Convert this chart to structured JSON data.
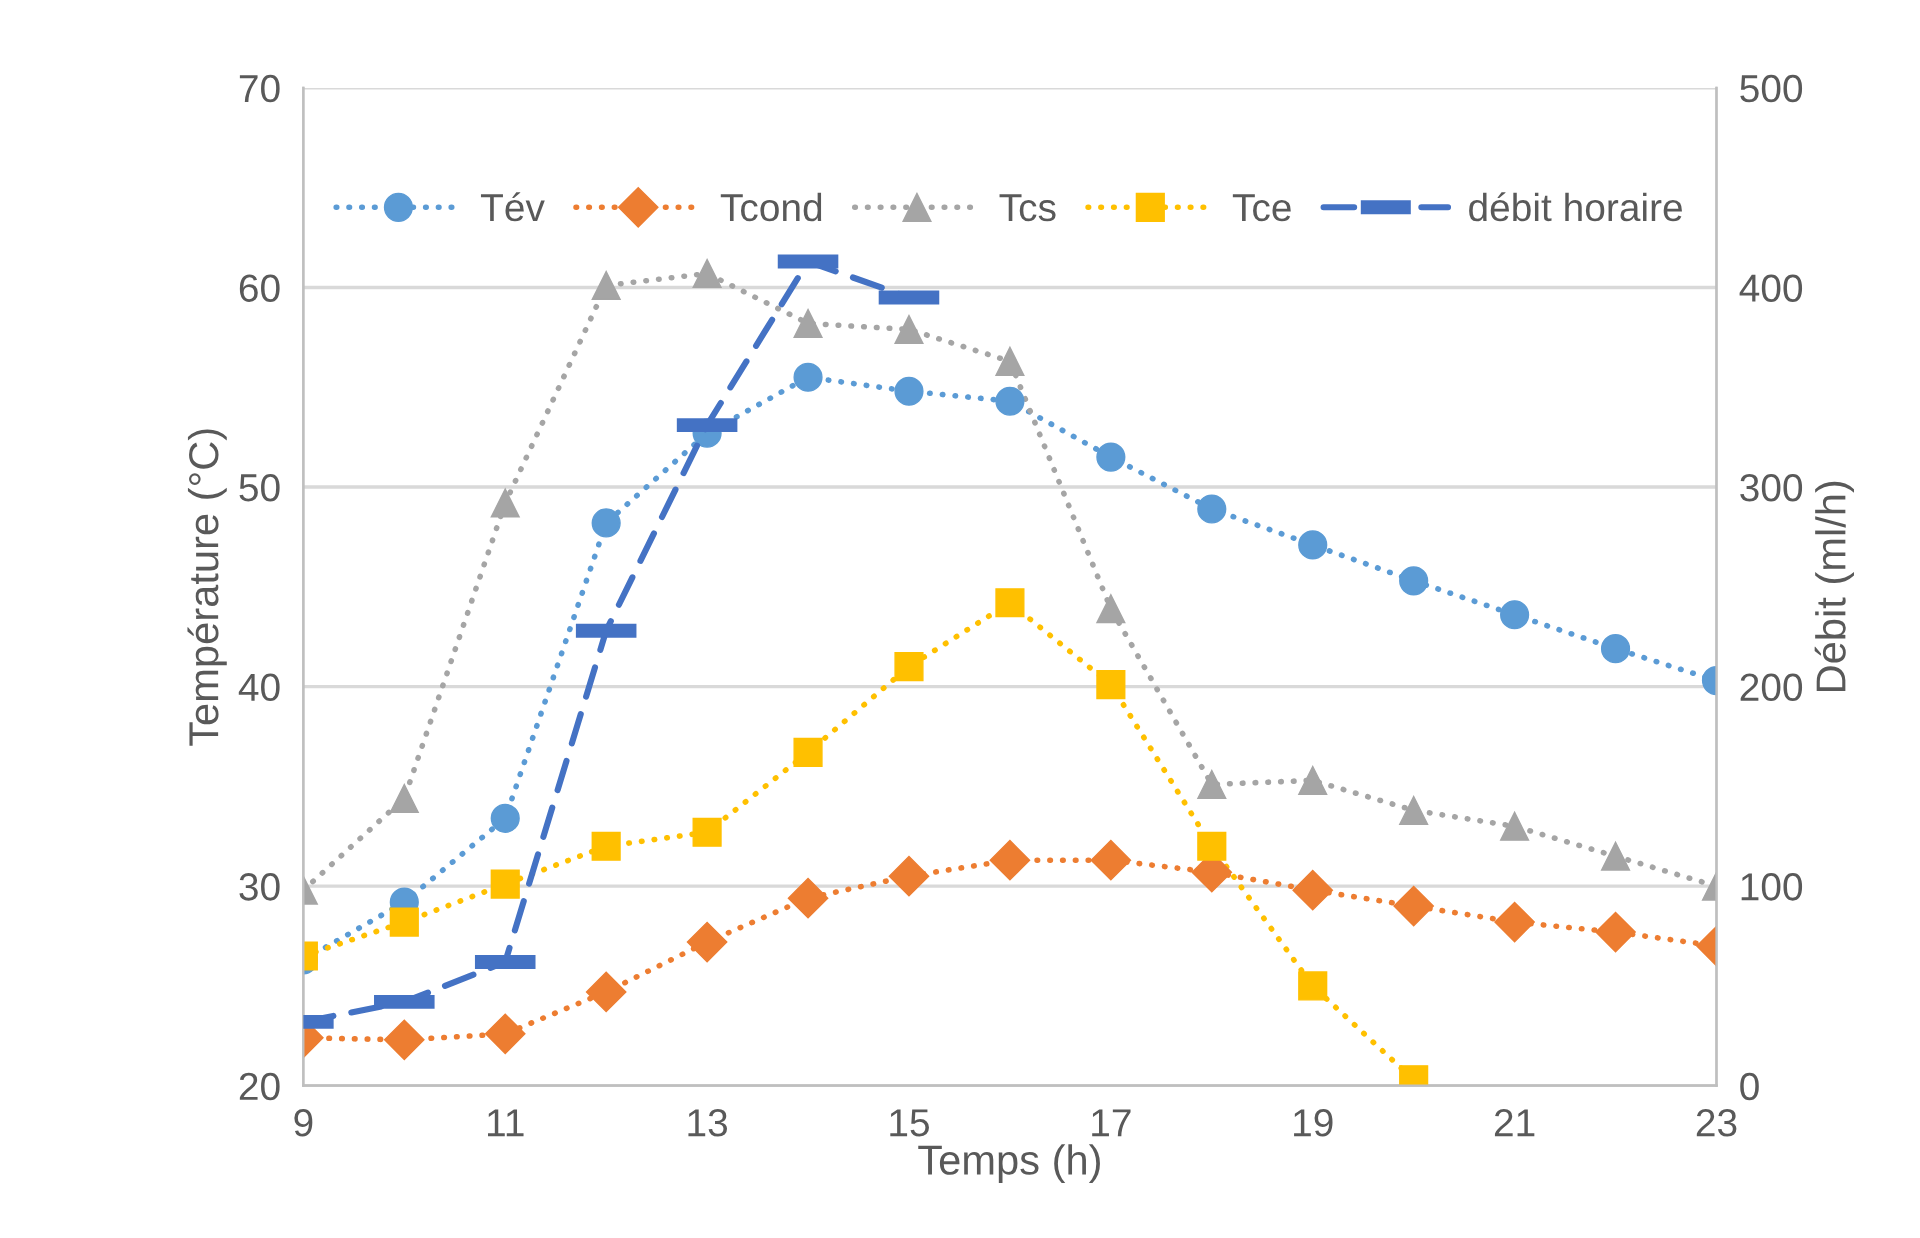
{
  "chart_data": {
    "type": "line",
    "xlabel": "Temps (h)",
    "ylabel": "Température (°C)",
    "y2label": "Débit (ml/h)",
    "x": [
      9,
      10,
      11,
      12,
      13,
      14,
      15,
      16,
      17,
      18,
      19,
      20,
      21,
      22,
      23
    ],
    "series": [
      {
        "name": "Tév",
        "color": "#5b9bd5",
        "marker": "circle",
        "line_style": "dotted",
        "values": [
          26.3,
          29.2,
          33.4,
          48.2,
          52.7,
          55.5,
          54.8,
          54.3,
          51.5,
          48.9,
          47.1,
          45.3,
          43.6,
          41.9,
          40.3
        ]
      },
      {
        "name": "Tcond",
        "color": "#ed7d31",
        "marker": "diamond",
        "line_style": "dotted",
        "values": [
          22.4,
          22.3,
          22.6,
          24.7,
          27.2,
          29.4,
          30.5,
          31.3,
          31.3,
          30.7,
          29.8,
          29.0,
          28.2,
          27.7,
          27.0
        ]
      },
      {
        "name": "Tcs",
        "color": "#a5a5a5",
        "marker": "triangle",
        "line_style": "dotted",
        "values": [
          29.8,
          34.4,
          49.2,
          60.1,
          60.7,
          58.2,
          57.9,
          56.3,
          43.9,
          35.1,
          35.3,
          33.8,
          33.0,
          31.5,
          30.0
        ]
      },
      {
        "name": "Tce",
        "color": "#ffc000",
        "marker": "square",
        "line_style": "dotted",
        "values": [
          26.5,
          28.2,
          30.1,
          32.0,
          32.7,
          36.7,
          41.0,
          44.2,
          40.1,
          32.0,
          25.0,
          20.3,
          null,
          null,
          null
        ]
      },
      {
        "name": "débit horaire",
        "color": "#4472c4",
        "marker": "none",
        "line_style": "dashed",
        "axis": "y2",
        "x": [
          9,
          10,
          11,
          12,
          13,
          14,
          15
        ],
        "values": [
          32,
          42,
          62,
          228,
          331,
          413,
          395
        ],
        "xerrors": [
          0.3,
          0.3,
          0.3,
          0.3,
          0.3,
          0.3,
          0.3
        ]
      }
    ],
    "xlim": [
      9,
      23
    ],
    "xticks": [
      9,
      11,
      13,
      15,
      17,
      19,
      21,
      23
    ],
    "ylim": [
      20,
      70
    ],
    "yticks": [
      20,
      30,
      40,
      50,
      60,
      70
    ],
    "y2lim": [
      0,
      500
    ],
    "y2ticks": [
      0,
      100,
      200,
      300,
      400,
      500
    ],
    "grid": "y",
    "legend": "top"
  }
}
